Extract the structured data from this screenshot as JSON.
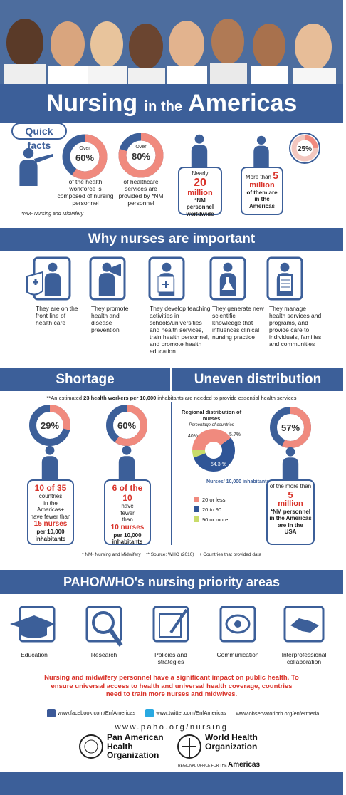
{
  "header": {
    "title_1": "Nursing",
    "title_2": "in the",
    "title_3": "Americas"
  },
  "quick_facts": {
    "label": "Quick facts",
    "facts": [
      {
        "prefix": "Over",
        "value": 60,
        "label": "60%",
        "text": "of the health workforce is composed of nursing personnel"
      },
      {
        "prefix": "Over",
        "value": 80,
        "label": "80%",
        "text": "of healthcare services are provided by *NM personnel"
      },
      {
        "prefix": "Nearly",
        "amount": "20",
        "unit": "million",
        "text": "*NM personnel worldwide"
      },
      {
        "value": 25,
        "label": "25%",
        "prefix": "More than",
        "amount": "5",
        "unit": "million",
        "text": "of them are in the Americas"
      }
    ],
    "footnote": "*NM- Nursing and Midwifery"
  },
  "importance": {
    "title": "Why nurses are important",
    "items": [
      "They are on the front line of health care",
      "They promote health and disease prevention",
      "They develop teaching activities in schools/universities and health services, train health personnel, and promote health education",
      "They generate new scientific knowledge that influences clinical nursing practice",
      "They manage health services and programs, and provide care to individuals, families and communities"
    ]
  },
  "note": [
    "**An estimated ",
    "23 health workers per 10,000",
    " inhabitants are needed to provide essential health services"
  ],
  "shortage": {
    "title": "Shortage",
    "items": [
      {
        "value": 29,
        "label": "29%",
        "lines": [
          "10 of 35",
          "countries",
          "in the Americas+",
          "have fewer than",
          "15 nurses",
          "per 10,000",
          "inhabitants"
        ]
      },
      {
        "value": 60,
        "label": "60%",
        "lines": [
          "6 of the 10",
          "have",
          "fewer",
          "than",
          "10 nurses",
          "per 10,000",
          "inhabitants"
        ]
      }
    ]
  },
  "distribution": {
    "title": "Uneven distribution",
    "chart_title": "Regional distribution of nurses",
    "chart_subtitle": "Percentage of countries",
    "legend_title": "Nurses/ 10,000 inhabitants",
    "segments": [
      {
        "name": "20 or less",
        "value": 40,
        "label": "40%",
        "color": "#f08a7e"
      },
      {
        "name": "20 to 90",
        "value": 54.3,
        "label": "54.3 %",
        "color": "#2f5597"
      },
      {
        "name": "90 or more",
        "value": 5.7,
        "label": "5.7%",
        "color": "#c9dc6a"
      }
    ],
    "usa": {
      "value": 57,
      "label": "57%",
      "lines": [
        "of the more than",
        "5",
        "million",
        "*NM personnel",
        "in the Americas",
        "are in the",
        "USA"
      ]
    }
  },
  "footnotes": [
    "* NM- Nursing and Midwifery",
    "** Source: WHO (2010)",
    "+ Countries that provided data"
  ],
  "priorities": {
    "title": "PAHO/WHO's nursing priority areas",
    "items": [
      "Education",
      "Research",
      "Policies and strategies",
      "Communication",
      "Interprofessional collaboration"
    ]
  },
  "message": "Nursing and midwifery personnel have a significant impact on public health. To ensure universal access to health and universal health coverage, countries need to train more nurses and midwives.",
  "links": [
    "www.facebook.com/EnfAmericas",
    "www.twitter.com/EnfAmericas",
    "www.observatoriorh.org/enfermeria"
  ],
  "website": "www.paho.org/nursing",
  "paho": "Pan American Health Organization",
  "who": {
    "name": "World Health Organization",
    "regional": "REGIONAL OFFICE FOR THE",
    "region": "Americas"
  }
}
